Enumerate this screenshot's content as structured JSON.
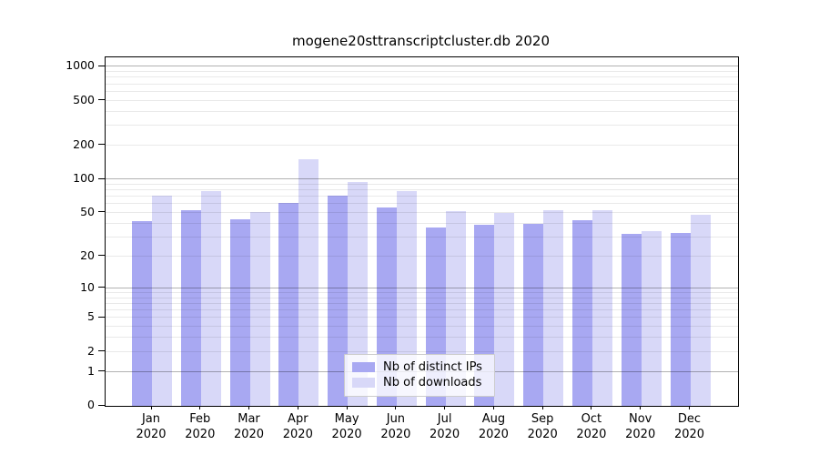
{
  "page": {
    "background": "#ffffff"
  },
  "chart_data": {
    "type": "bar",
    "title": "mogene20sttranscriptcluster.db 2020",
    "categories": [
      "Jan",
      "Feb",
      "Mar",
      "Apr",
      "May",
      "Jun",
      "Jul",
      "Aug",
      "Sep",
      "Oct",
      "Nov",
      "Dec"
    ],
    "year_label": "2020",
    "series": [
      {
        "name": "Nb of distinct IPs",
        "color": "#a8a8f2",
        "values": [
          42,
          53,
          44,
          62,
          72,
          56,
          37,
          39,
          40,
          43,
          32,
          33
        ]
      },
      {
        "name": "Nb of downloads",
        "color": "#d8d8f8",
        "values": [
          72,
          78,
          51,
          150,
          95,
          79,
          52,
          50,
          53,
          53,
          34,
          48
        ]
      }
    ],
    "xlabel": "",
    "ylabel": "",
    "yticks": [
      0,
      1,
      2,
      5,
      10,
      20,
      50,
      100,
      200,
      500,
      1000
    ],
    "scale": "log1p",
    "ylim": [
      0,
      1210
    ],
    "grid": true,
    "legend_position": "inside-bottom-center",
    "colors": {
      "major_grid": "#b3b3b3",
      "minor_grid": "#e8e8e8",
      "axis": "#000000"
    }
  }
}
